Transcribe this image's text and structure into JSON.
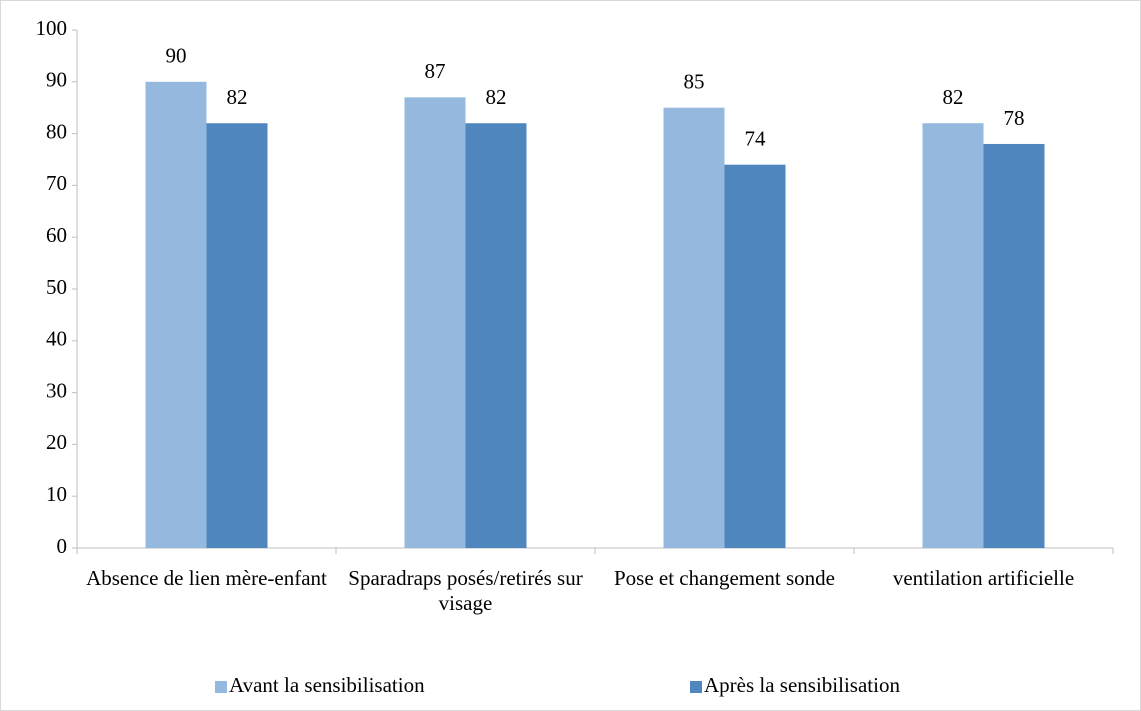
{
  "chart_data": {
    "type": "bar",
    "categories": [
      "Absence de lien mère-enfant",
      "Sparadraps posés/retirés sur visage",
      "Pose et changement sonde",
      "ventilation artificielle"
    ],
    "series": [
      {
        "name": "Avant la sensibilisation",
        "color": "#95b8de",
        "values": [
          90,
          87,
          85,
          82
        ]
      },
      {
        "name": "Après la sensibilisation",
        "color": "#4f86bd",
        "values": [
          82,
          82,
          74,
          78
        ]
      }
    ],
    "ylim": [
      0,
      100
    ],
    "yticks": [
      0,
      10,
      20,
      30,
      40,
      50,
      60,
      70,
      80,
      90,
      100
    ],
    "legend": "bottom"
  }
}
